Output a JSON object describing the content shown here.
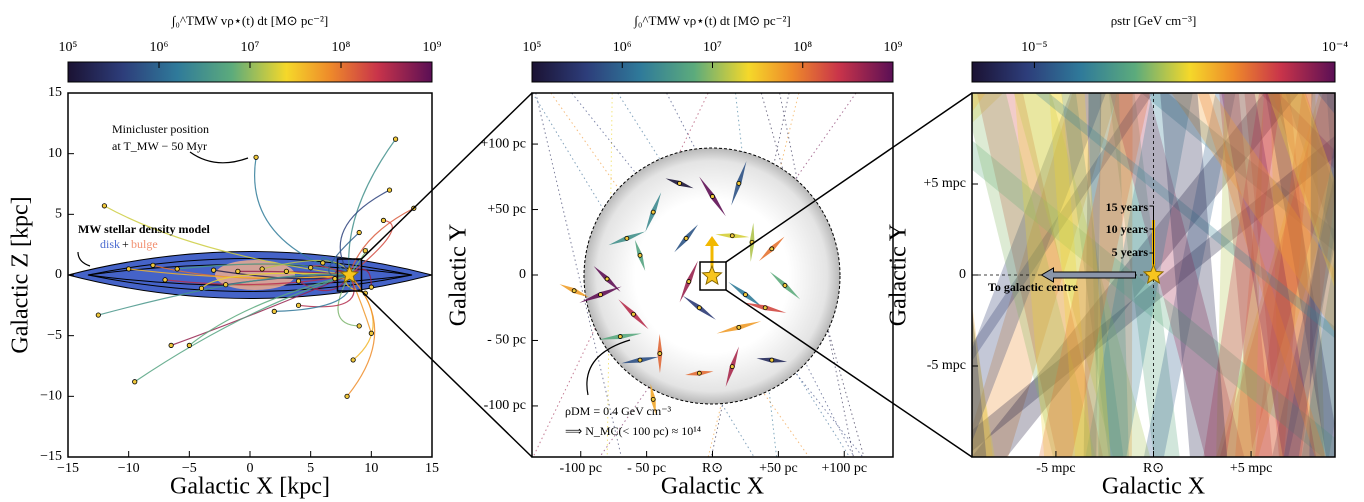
{
  "chart_data": [
    {
      "type": "scatter",
      "colorbar": {
        "label": "∫₀^TMW vρ⋆(t) dt   [M⊙ pc⁻²]",
        "scale": "log",
        "clim": [
          100000,
          1000000000
        ],
        "ticks": [
          {
            "value": 100000,
            "label": "10⁵"
          },
          {
            "value": 1000000,
            "label": "10⁶"
          },
          {
            "value": 10000000,
            "label": "10⁷"
          },
          {
            "value": 100000000,
            "label": "10⁸"
          },
          {
            "value": 1000000000,
            "label": "10⁹"
          }
        ]
      },
      "xlabel": "Galactic X [kpc]",
      "ylabel": "Galactic Z [kpc]",
      "xlim": [
        -15,
        15
      ],
      "ylim": [
        -15,
        15
      ],
      "xticks": [
        {
          "value": -15,
          "label": "−15"
        },
        {
          "value": -10,
          "label": "−10"
        },
        {
          "value": -5,
          "label": "−5"
        },
        0,
        5,
        10,
        15
      ],
      "yticks": [
        {
          "value": -15,
          "label": "−15"
        },
        {
          "value": -10,
          "label": "−10"
        },
        {
          "value": -5,
          "label": "−5"
        },
        0,
        5,
        10,
        15
      ],
      "color": "#f0c83c",
      "x": [
        0.5,
        -12,
        -8,
        -10,
        -6,
        -3,
        -1,
        1,
        3,
        4,
        5,
        6,
        7,
        -7,
        -4,
        -2,
        -12.5,
        -6.5,
        -9.5,
        -5,
        9.5,
        9,
        8.5,
        10,
        8,
        12,
        13.5,
        11,
        11.5,
        9,
        9.5,
        10,
        4,
        2
      ],
      "values": [
        9.7,
        5.7,
        0.8,
        0.5,
        0.5,
        0.4,
        0.3,
        0.5,
        0.3,
        -0.5,
        0.6,
        1.0,
        -0.3,
        -0.4,
        -1.1,
        -0.8,
        -3.3,
        -5.8,
        -8.8,
        -5.8,
        -1.5,
        -4.2,
        -7,
        -4.8,
        -10,
        11.2,
        5.5,
        4.5,
        7,
        3.5,
        2,
        -1,
        -2.5,
        -3
      ],
      "sun": {
        "x": 8.2,
        "y": 0
      },
      "annotations": [
        "Minicluster position",
        "at T_MW − 50 Myr",
        "MW stellar density model",
        "disk",
        "+",
        "bulge"
      ]
    },
    {
      "type": "scatter",
      "colorbar": {
        "label": "∫₀^TMW vρ⋆(t) dt   [M⊙ pc⁻²]",
        "scale": "log",
        "clim": [
          100000,
          1000000000
        ],
        "ticks": [
          {
            "value": 100000,
            "label": "10⁵"
          },
          {
            "value": 1000000,
            "label": "10⁶"
          },
          {
            "value": 10000000,
            "label": "10⁷"
          },
          {
            "value": 100000000,
            "label": "10⁸"
          },
          {
            "value": 1000000000,
            "label": "10⁹"
          }
        ]
      },
      "xlabel": "Galactic X",
      "ylabel": "Galactic Y",
      "xlim": [
        -137,
        137
      ],
      "ylim": [
        -139,
        139
      ],
      "xticks": [
        {
          "value": -100,
          "label": "-100 pc"
        },
        {
          "value": -50,
          "label": "- 50 pc"
        },
        {
          "value": 0,
          "label": "R⊙"
        },
        {
          "value": 50,
          "label": "+50 pc"
        },
        {
          "value": 100,
          "label": "+100 pc"
        }
      ],
      "yticks": [
        {
          "value": 100,
          "label": "+100 pc"
        },
        {
          "value": 50,
          "label": "+50 pc"
        },
        0,
        {
          "value": -50,
          "label": "- 50 pc"
        },
        {
          "value": -100,
          "label": "-100 pc"
        }
      ],
      "color": "#f0c83c",
      "x": [
        -85,
        -70,
        -60,
        -55,
        -65,
        -45,
        -20,
        0,
        -18,
        -10,
        -40,
        -55,
        -45,
        30,
        45,
        15,
        25,
        55,
        40,
        20,
        -10,
        15,
        45,
        -25,
        20,
        -105,
        -80
      ],
      "values": [
        -15,
        -47,
        -30,
        15,
        28,
        48,
        28,
        60,
        -5,
        -25,
        -60,
        -65,
        -95,
        25,
        20,
        30,
        -15,
        -8,
        -25,
        -40,
        -75,
        -70,
        -65,
        70,
        70,
        -12,
        -3
      ],
      "annotations": [
        "ρDM = 0.4 GeV cm⁻³",
        "⟹ N_MC(< 100 pc) ≈ 10¹⁴"
      ]
    },
    {
      "type": "density-map",
      "colorbar": {
        "label": "ρstr [GeV cm⁻³]",
        "scale": "log",
        "clim": [
          6.2e-06,
          0.0001
        ],
        "ticks": [
          {
            "value": 1e-05,
            "label": "10⁻⁵"
          },
          {
            "value": 0.0001,
            "label": "10⁻⁴"
          }
        ]
      },
      "xlabel": "Galactic X",
      "ylabel": "Galactic Y",
      "xlim": [
        -9.3,
        9.3
      ],
      "ylim": [
        -10,
        10
      ],
      "xticks": [
        {
          "value": -5,
          "label": "-5 mpc"
        },
        {
          "value": 0,
          "label": "R⊙"
        },
        {
          "value": 5,
          "label": "+5 mpc"
        }
      ],
      "yticks": [
        {
          "value": 5,
          "label": "+5 mpc"
        },
        0,
        {
          "value": -5,
          "label": "-5 mpc"
        }
      ],
      "annotations": [
        "15 years",
        "10 years",
        "5 years",
        "To galactic centre"
      ]
    }
  ]
}
